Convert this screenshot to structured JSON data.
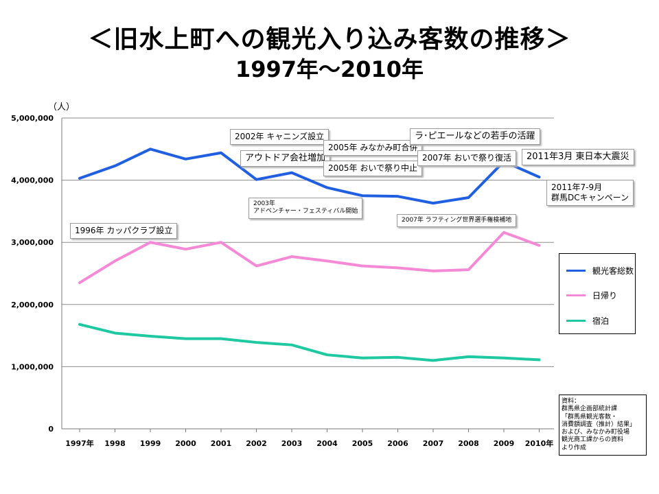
{
  "title": {
    "line1": "＜旧水上町への観光入り込み客数の推移＞",
    "line2": "1997年～2010年"
  },
  "chart_data": {
    "type": "line",
    "unit": "（人）",
    "categories": [
      "1997年",
      "1998",
      "1999",
      "2000",
      "2001",
      "2002",
      "2003",
      "2004",
      "2005",
      "2006",
      "2007",
      "2008",
      "2009",
      "2010年"
    ],
    "y_ticks": [
      "0",
      "1,000,000",
      "2,000,000",
      "3,000,000",
      "4,000,000",
      "5,000,000"
    ],
    "ylim": [
      0,
      5000000
    ],
    "grid": true,
    "legend_position": "right",
    "series": [
      {
        "name": "観光客総数",
        "color": "#1f5fe0",
        "values": [
          4030000,
          4230000,
          4500000,
          4340000,
          4440000,
          4010000,
          4120000,
          3880000,
          3750000,
          3740000,
          3630000,
          3720000,
          4300000,
          4050000
        ]
      },
      {
        "name": "日帰り",
        "color": "#f48ad6",
        "values": [
          2350000,
          2700000,
          3000000,
          2890000,
          3000000,
          2620000,
          2770000,
          2700000,
          2620000,
          2590000,
          2540000,
          2560000,
          3160000,
          2950000
        ]
      },
      {
        "name": "宿泊",
        "color": "#1ec8a0",
        "values": [
          1680000,
          1540000,
          1490000,
          1450000,
          1450000,
          1390000,
          1350000,
          1190000,
          1140000,
          1150000,
          1100000,
          1160000,
          1140000,
          1110000
        ]
      }
    ],
    "annotations": [
      {
        "id": "a1996",
        "text": "1996年 カッパクラブ設立"
      },
      {
        "id": "a2002",
        "text": "2002年 キャニンズ設立"
      },
      {
        "id": "aoutdoor",
        "text": "アウトドア会社増加"
      },
      {
        "id": "a2003",
        "text": "2003年\nアドベンチャー・フェスティバル開始"
      },
      {
        "id": "a2005a",
        "text": "2005年 みなかみ町合併"
      },
      {
        "id": "a2005b",
        "text": "2005年 おいで祭り中止"
      },
      {
        "id": "araft",
        "text": "ラ･ピエールなどの若手の活躍"
      },
      {
        "id": "a2007a",
        "text": "2007年 おいで祭り復活"
      },
      {
        "id": "a2007b",
        "text": "2007年 ラフティング世界選手権検補地"
      },
      {
        "id": "a2011a",
        "text": "2011年3月 東日本大震災"
      },
      {
        "id": "a2011b",
        "text": "2011年7-9月\n群馬DCキャンペーン"
      }
    ]
  },
  "source_note": [
    "資料：",
    "群馬県企画部統計課",
    "「群馬県観光客数・",
    "消費額調査（推計）結果」",
    "および、みなかみ町役場",
    "観光商工課からの資料",
    "より作成"
  ]
}
